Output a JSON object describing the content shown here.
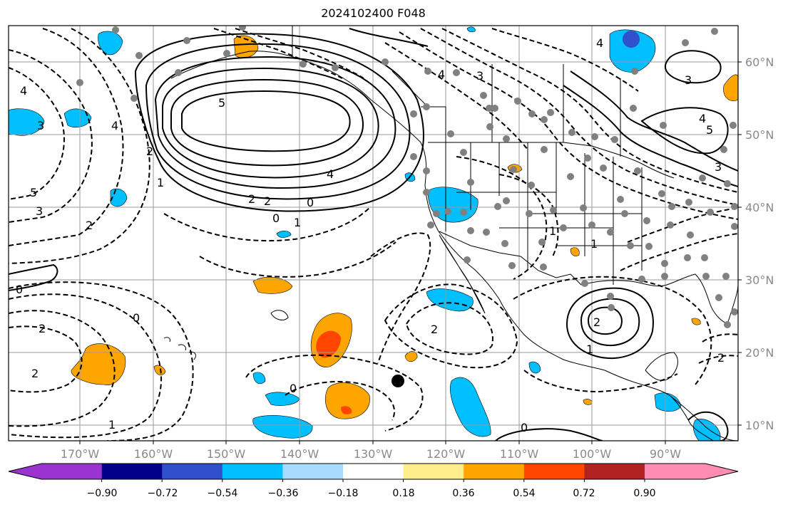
{
  "title": "2024102400 F048",
  "lon_ticks": [
    "170°W",
    "160°W",
    "150°W",
    "140°W",
    "130°W",
    "120°W",
    "110°W",
    "100°W",
    "90°W"
  ],
  "lat_ticks": [
    "60°N",
    "50°N",
    "40°N",
    "30°N",
    "20°N",
    "10°N"
  ],
  "colorbar": {
    "colors": [
      "#9a33cf",
      "#00008b",
      "#3050cc",
      "#00bfff",
      "#a8dcff",
      "#ffffff",
      "#ffec8b",
      "#ffa500",
      "#ff4500",
      "#b22222",
      "#ff8db3"
    ],
    "tick_labels": [
      "−0.90",
      "−0.72",
      "−0.54",
      "−0.36",
      "−0.18",
      "0.18",
      "0.36",
      "0.54",
      "0.72",
      "0.90"
    ]
  },
  "contour_labels": {
    "l1": "5",
    "l2": "4",
    "l3": "2",
    "l4": "2",
    "l5": "0",
    "l6": "0",
    "l7": "1",
    "l8": "4",
    "l9": "3",
    "l10": "4",
    "l11": "5",
    "l12": "3",
    "l13": "2",
    "l14": "2",
    "l15": "1",
    "l16": "0",
    "l17": "0",
    "l18": "2",
    "l19": "2",
    "l20": "1",
    "l21": "0",
    "l22": "4",
    "l23": "4",
    "l24": "2",
    "l25": "1",
    "l26": "1",
    "l27": "2",
    "l28": "1",
    "l29": "0",
    "l30": "5",
    "l31": "3",
    "l32": "3",
    "l33": "3",
    "l34": "4",
    "l35": "2"
  }
}
